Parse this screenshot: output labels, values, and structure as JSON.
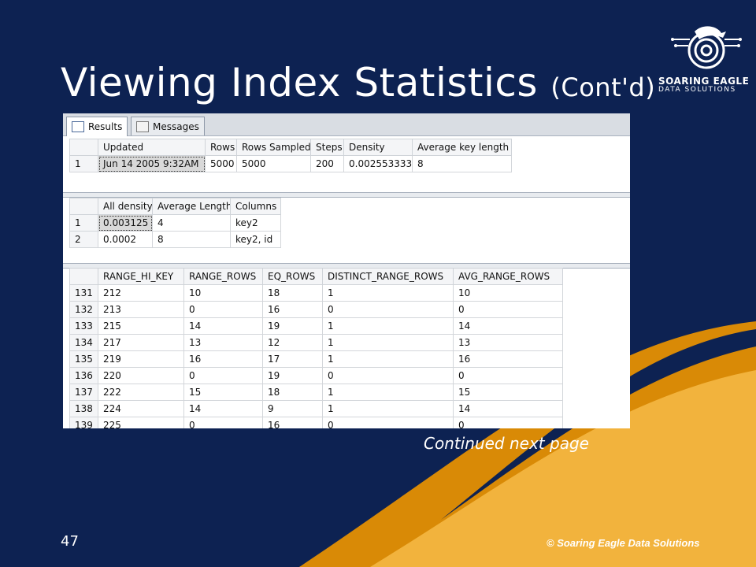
{
  "slide": {
    "title": "Viewing Index Statistics",
    "title_suffix": "(Cont'd)",
    "continued_text": "Continued next page",
    "page_number": "47",
    "copyright": "© Soaring Eagle Data Solutions"
  },
  "logo": {
    "line1": "SOARING EAGLE",
    "line2": "DATA SOLUTIONS"
  },
  "tabs": [
    {
      "label": "Results",
      "icon": "grid-icon"
    },
    {
      "label": "Messages",
      "icon": "messages-icon"
    }
  ],
  "header_grid": {
    "columns": [
      "",
      "Updated",
      "Rows",
      "Rows Sampled",
      "Steps",
      "Density",
      "Average key length"
    ],
    "rows": [
      [
        "1",
        "Jun 14 2005  9:32AM",
        "5000",
        "5000",
        "200",
        "0.002553333",
        "8"
      ]
    ]
  },
  "density_grid": {
    "columns": [
      "",
      "All density",
      "Average Length",
      "Columns"
    ],
    "rows": [
      [
        "1",
        "0.003125",
        "4",
        "key2"
      ],
      [
        "2",
        "0.0002",
        "8",
        "key2, id"
      ]
    ]
  },
  "histogram_grid": {
    "columns": [
      "",
      "RANGE_HI_KEY",
      "RANGE_ROWS",
      "EQ_ROWS",
      "DISTINCT_RANGE_ROWS",
      "AVG_RANGE_ROWS"
    ],
    "rows": [
      [
        "131",
        "212",
        "10",
        "18",
        "1",
        "10"
      ],
      [
        "132",
        "213",
        "0",
        "16",
        "0",
        "0"
      ],
      [
        "133",
        "215",
        "14",
        "19",
        "1",
        "14"
      ],
      [
        "134",
        "217",
        "13",
        "12",
        "1",
        "13"
      ],
      [
        "135",
        "219",
        "16",
        "17",
        "1",
        "16"
      ],
      [
        "136",
        "220",
        "0",
        "19",
        "0",
        "0"
      ],
      [
        "137",
        "222",
        "15",
        "18",
        "1",
        "15"
      ],
      [
        "138",
        "224",
        "14",
        "9",
        "1",
        "14"
      ],
      [
        "139",
        "225",
        "0",
        "16",
        "0",
        "0"
      ]
    ]
  },
  "colors": {
    "background": "#0d2252",
    "gold": "#f2b33d",
    "dark_gold": "#d98a06"
  }
}
